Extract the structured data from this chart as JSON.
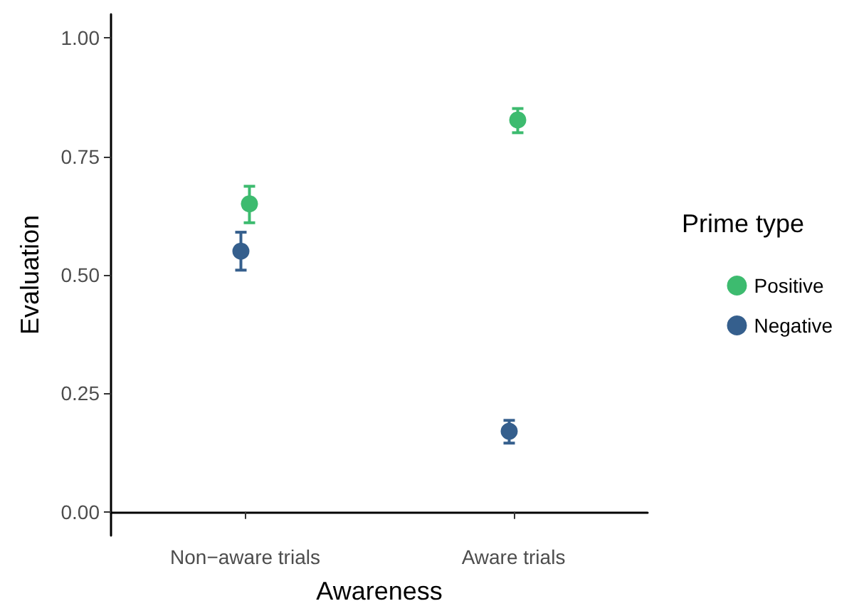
{
  "chart_data": {
    "type": "scatter",
    "xlabel": "Awareness",
    "ylabel": "Evaluation",
    "legend_title": "Prime type",
    "categories": [
      "Non−aware trials",
      "Aware trials"
    ],
    "series": [
      {
        "name": "Positive",
        "color": "#3dbb6f",
        "values": [
          0.65,
          0.827
        ],
        "errors": [
          [
            0.61,
            0.687
          ],
          [
            0.8,
            0.851
          ]
        ]
      },
      {
        "name": "Negative",
        "color": "#355f8d",
        "values": [
          0.55,
          0.17
        ],
        "errors": [
          [
            0.51,
            0.59
          ],
          [
            0.145,
            0.193
          ]
        ]
      }
    ],
    "ylim": [
      -0.05,
      1.05
    ],
    "yticks": [
      {
        "value": 0,
        "label": "0.00"
      },
      {
        "value": 0.25,
        "label": "0.25"
      },
      {
        "value": 0.5,
        "label": "0.50"
      },
      {
        "value": 0.75,
        "label": "0.75"
      },
      {
        "value": 1,
        "label": "1.00"
      }
    ],
    "grid": false,
    "legend": "right",
    "marker": "circle"
  }
}
